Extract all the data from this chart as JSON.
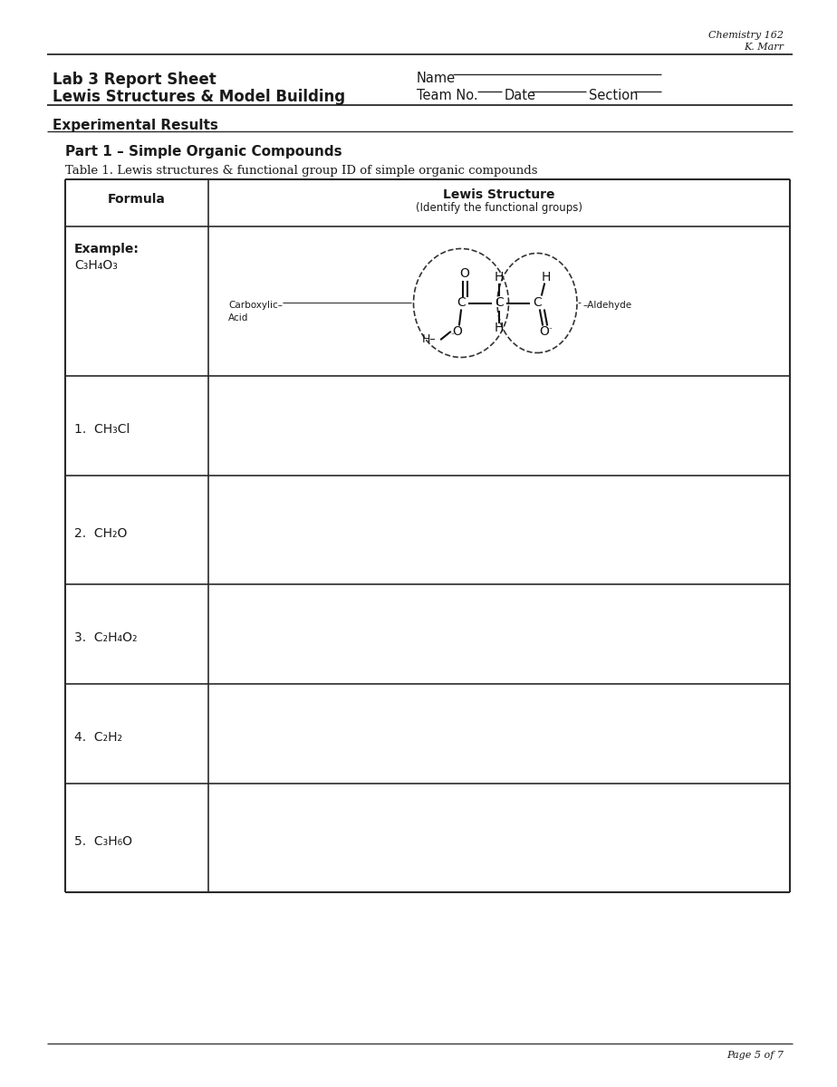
{
  "header_line1": "Chemistry 162",
  "header_line2": "K. Marr",
  "title1": "Lab 3 Report Sheet",
  "title2": "Lewis Structures & Model Building",
  "name_label": "Name",
  "teamno_label": "Team No.",
  "date_label": "Date",
  "section_label": "Section",
  "section1": "Experimental Results",
  "part1": "Part 1 – Simple Organic Compounds",
  "table_caption": "Table 1. Lewis structures & functional group ID of simple organic compounds",
  "col1_header": "Formula",
  "col2_header_line1": "Lewis Structure",
  "col2_header_line2": "(Identify the functional groups)",
  "example_label": "Example:",
  "example_formula": "C₃H₄O₃",
  "carboxylic_line1": "Carboxylic–",
  "carboxylic_line2": "Acid",
  "aldehyde_label": "–Aldehyde",
  "rows": [
    {
      "num": "1.",
      "formula": "CH₃Cl"
    },
    {
      "num": "2.",
      "formula": "CH₂O"
    },
    {
      "num": "3.",
      "formula": "C₂H₄O₂"
    },
    {
      "num": "4.",
      "formula": "C₂H₂"
    },
    {
      "num": "5.",
      "formula": "C₃H₆O"
    }
  ],
  "page_footer": "Page 5 of 7",
  "bg_color": "#ffffff"
}
